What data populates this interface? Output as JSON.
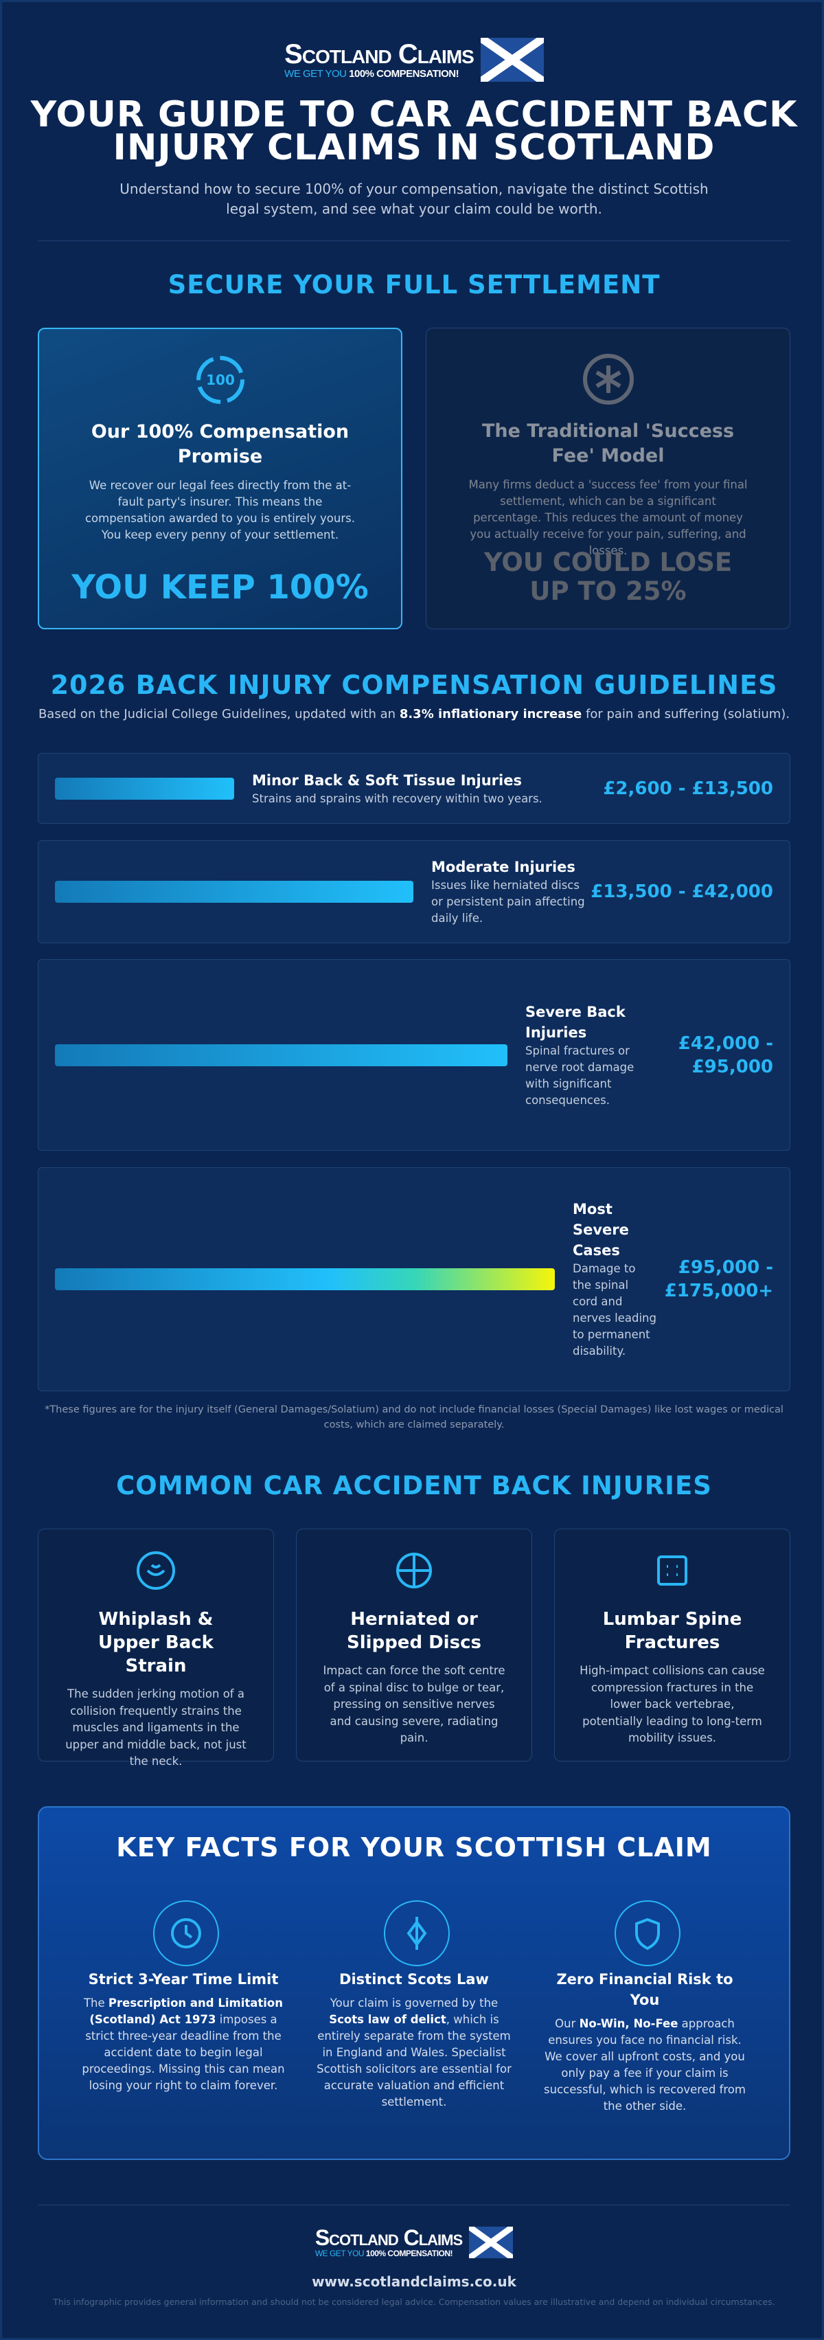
{
  "header": {
    "brand": "Scotland Claims",
    "tagline_parts": [
      "WE GET YOU ",
      "100% COMPENSATION!"
    ],
    "title": "YOUR GUIDE TO CAR ACCIDENT BACK INJURY CLAIMS IN SCOTLAND",
    "subtitle": "Understand how to secure 100% of your compensation, navigate the distinct Scottish legal system, and see what your claim could be worth."
  },
  "settlement": {
    "heading": "SECURE YOUR FULL SETTLEMENT",
    "cards": [
      {
        "title": "Our 100% Compensation Promise",
        "text": "We recover our legal fees directly from the at-fault party's insurer. This means the compensation awarded to you is entirely yours. You keep every penny of your settlement.",
        "highlight": "YOU KEEP 100%"
      },
      {
        "title": "The Traditional 'Success Fee' Model",
        "text": "Many firms deduct a 'success fee' from your final settlement, which can be a significant percentage. This reduces the amount of money you actually receive for your pain, suffering, and losses.",
        "highlight": "YOU COULD LOSE UP TO 25%"
      }
    ]
  },
  "guidelines": {
    "heading": "2026 BACK INJURY COMPENSATION GUIDELINES",
    "intro_parts": [
      "Based on the Judicial College Guidelines, updated with an ",
      "8.3% inflationary increase",
      " for pain and suffering (solatium)."
    ],
    "rows": [
      {
        "title": "Minor Back & Soft Tissue Injuries",
        "description": "Strains and sprains with recovery within two years.",
        "range": "£2,600 - £13,500"
      },
      {
        "title": "Moderate Injuries",
        "description": "Issues like herniated discs or persistent pain affecting daily life.",
        "range": "£13,500 - £42,000"
      },
      {
        "title": "Severe Back Injuries",
        "description": "Spinal fractures or nerve root damage with significant consequences.",
        "range": "£42,000 - £95,000"
      },
      {
        "title": "Most Severe Cases",
        "description": "Damage to the spinal cord and nerves leading to permanent disability.",
        "range": "£95,000 - £175,000+"
      }
    ],
    "footnote": "*These figures are for the injury itself (General Damages/Solatium) and do not include financial losses (Special Damages) like lost wages or medical costs, which are claimed separately."
  },
  "injuries": {
    "heading": "COMMON CAR ACCIDENT BACK INJURIES",
    "cards": [
      {
        "title": "Whiplash & Upper Back Strain",
        "text": "The sudden jerking motion of a collision frequently strains the muscles and ligaments in the upper and middle back, not just the neck."
      },
      {
        "title": "Herniated or Slipped Discs",
        "text": "Impact can force the soft centre of a spinal disc to bulge or tear, pressing on sensitive nerves and causing severe, radiating pain."
      },
      {
        "title": "Lumbar Spine Fractures",
        "text": "High-impact collisions can cause compression fractures in the lower back vertebrae, potentially leading to long-term mobility issues."
      }
    ]
  },
  "facts": {
    "heading": "KEY FACTS FOR YOUR SCOTTISH CLAIM",
    "items": [
      {
        "title": "Strict 3-Year Time Limit",
        "text_parts": [
          "The ",
          "Prescription and Limitation (Scotland) Act 1973",
          " imposes a strict three-year deadline from the accident date to begin legal proceedings. Missing this can mean losing your right to claim forever."
        ]
      },
      {
        "title": "Distinct Scots Law",
        "text_parts": [
          "Your claim is governed by the ",
          "Scots law of delict",
          ", which is entirely separate from the system in England and Wales. Specialist Scottish solicitors are essential for accurate valuation and efficient settlement."
        ]
      },
      {
        "title": "Zero Financial Risk to You",
        "text_parts": [
          "Our ",
          "No-Win, No-Fee",
          " approach ensures you face no financial risk. We cover all upfront costs, and you only pay a fee if your claim is successful, which is recovered from the other side."
        ]
      }
    ]
  },
  "footer": {
    "brand": "Scotland Claims",
    "tagline_parts": [
      "WE GET YOU ",
      "100% COMPENSATION!"
    ],
    "url": "www.scotlandclaims.co.uk",
    "disclaimer": "This infographic provides general information and should not be considered legal advice. Compensation values are illustrative and depend on individual circumstances."
  }
}
